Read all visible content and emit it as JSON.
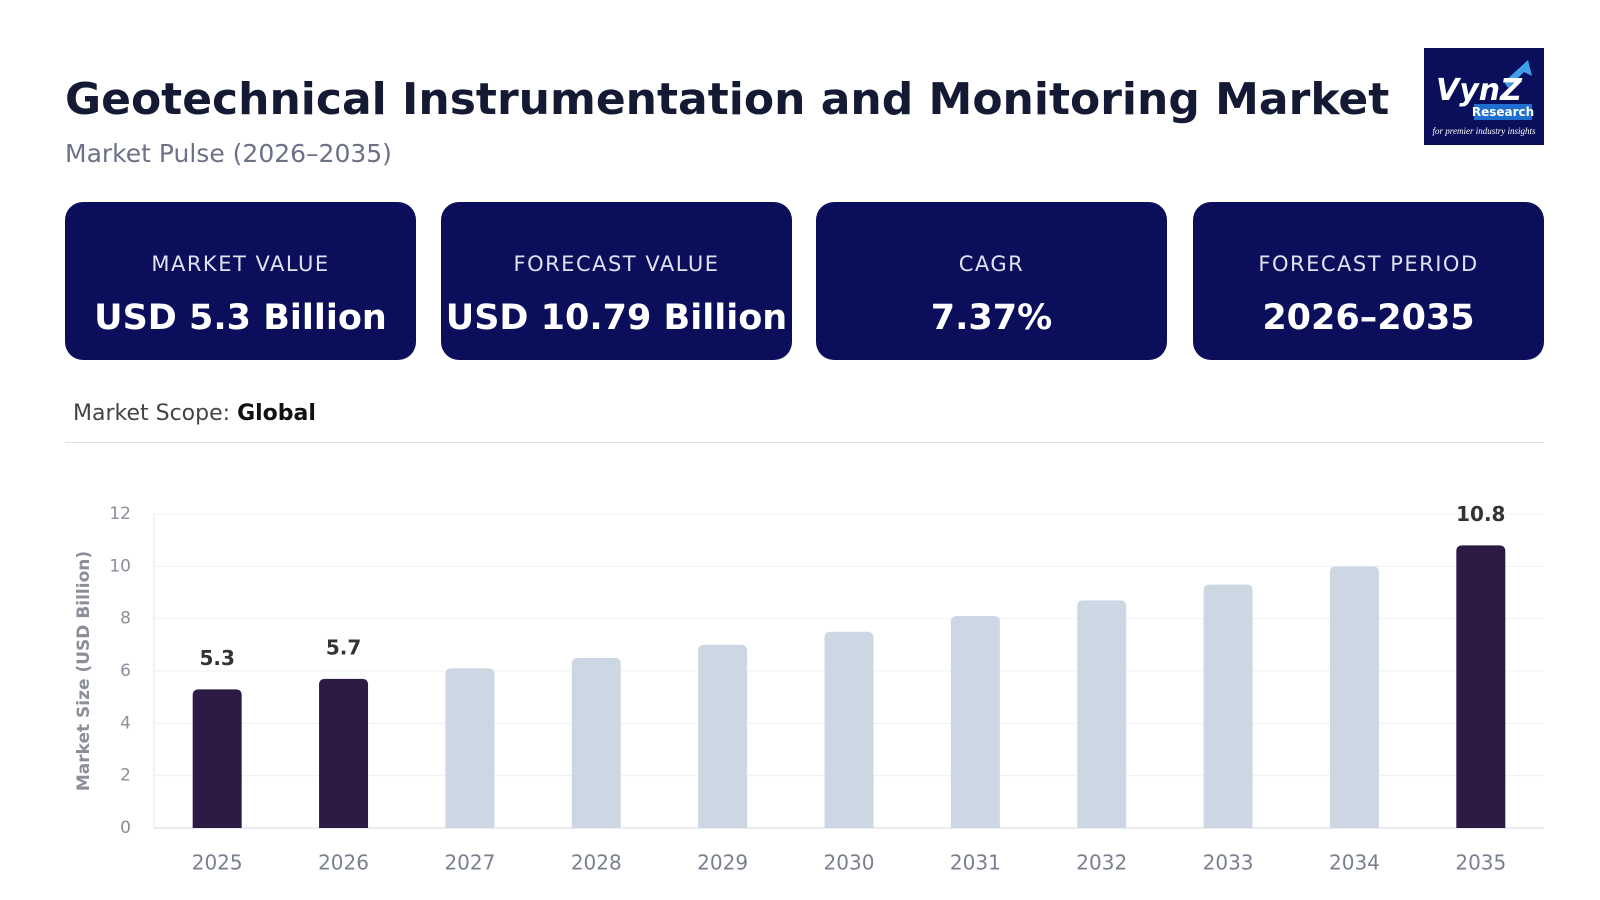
{
  "header": {
    "title": "Geotechnical Instrumentation and Monitoring Market",
    "subtitle": "Market Pulse (2026–2035)"
  },
  "logo": {
    "name": "VynZ",
    "sub": "Research",
    "tagline": "for premier industry insights"
  },
  "cards": [
    {
      "label": "MARKET VALUE",
      "value": "USD 5.3 Billion"
    },
    {
      "label": "FORECAST VALUE",
      "value": "USD 10.79 Billion"
    },
    {
      "label": "CAGR",
      "value": "7.37%"
    },
    {
      "label": "FORECAST PERIOD",
      "value": "2026–2035"
    }
  ],
  "scope": {
    "label": "Market Scope:",
    "value": "Global"
  },
  "chart_data": {
    "type": "bar",
    "ylabel": "Market Size (USD Billion)",
    "categories": [
      "2025",
      "2026",
      "2027",
      "2028",
      "2029",
      "2030",
      "2031",
      "2032",
      "2033",
      "2034",
      "2035"
    ],
    "values": [
      5.3,
      5.7,
      6.1,
      6.5,
      7.0,
      7.5,
      8.1,
      8.7,
      9.3,
      10.0,
      10.8
    ],
    "value_labels": [
      "5.3",
      "5.7",
      null,
      null,
      null,
      null,
      null,
      null,
      null,
      null,
      "10.8"
    ],
    "colors": [
      "#2d1b45",
      "#2d1b45",
      "#cdd7e4",
      "#cdd7e4",
      "#cdd7e4",
      "#cdd7e4",
      "#cdd7e4",
      "#cdd7e4",
      "#cdd7e4",
      "#cdd7e4",
      "#2d1b45"
    ],
    "ylim": [
      0,
      12
    ],
    "yticks": [
      0,
      2,
      4,
      6,
      8,
      10,
      12
    ],
    "grid": true
  }
}
